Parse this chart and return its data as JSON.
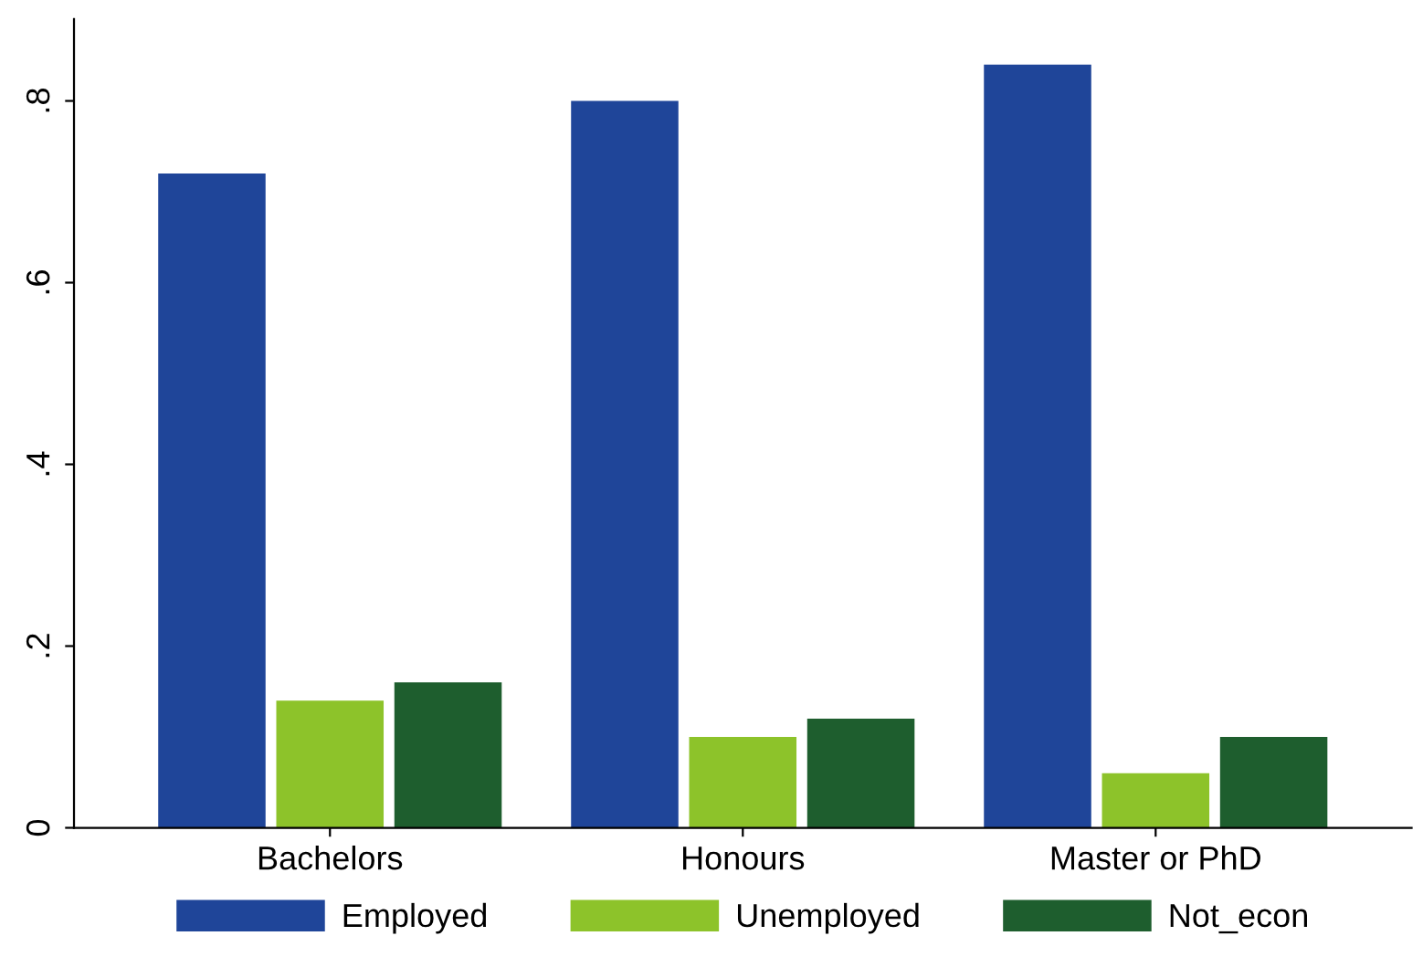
{
  "chart_data": {
    "type": "bar",
    "categories": [
      "Bachelors",
      "Honours",
      "Master or PhD"
    ],
    "series": [
      {
        "name": "Employed",
        "color": "#1f4599",
        "values": [
          0.72,
          0.8,
          0.84
        ]
      },
      {
        "name": "Unemployed",
        "color": "#8dc32a",
        "values": [
          0.14,
          0.1,
          0.06
        ]
      },
      {
        "name": "Not_econ",
        "color": "#1e5e2e",
        "values": [
          0.16,
          0.12,
          0.1
        ]
      }
    ],
    "ylim": [
      0,
      0.89
    ],
    "yticks": [
      0,
      {
        "value": 0.2,
        "label": ".2"
      },
      {
        "value": 0.4,
        "label": ".4"
      },
      {
        "value": 0.6,
        "label": ".6"
      },
      {
        "value": 0.8,
        "label": ".8"
      }
    ],
    "grid": false,
    "legend": "bottom"
  }
}
